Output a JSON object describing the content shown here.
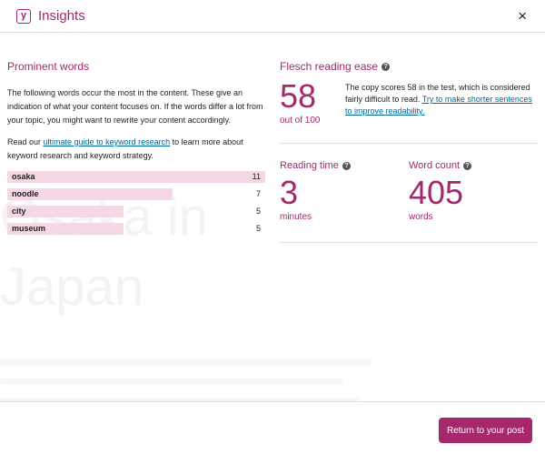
{
  "header": {
    "logo_letter": "y",
    "title": "Insights",
    "close_glyph": "×"
  },
  "prominent": {
    "heading": "Prominent words",
    "description": "The following words occur the most in the content. These give an indication of what your content focuses on. If the words differ a lot from your topic, you might want to rewrite your content accordingly.",
    "read_prefix": "Read our ",
    "read_link": "ultimate guide to keyword research",
    "read_suffix": " to learn more about keyword research and keyword strategy.",
    "words": [
      {
        "word": "osaka",
        "count": 11,
        "fraction": 1.0
      },
      {
        "word": "noodle",
        "count": 7,
        "fraction": 0.64
      },
      {
        "word": "city",
        "count": 5,
        "fraction": 0.45
      },
      {
        "word": "museum",
        "count": 5,
        "fraction": 0.45
      }
    ]
  },
  "flesch": {
    "title": "Flesch reading ease",
    "score": "58",
    "out_of": "out of 100",
    "description": "The copy scores 58 in the test, which is considered fairly difficult to read. ",
    "link": "Try to make shorter sentences to improve readability."
  },
  "reading_time": {
    "title": "Reading time",
    "value": "3",
    "unit": "minutes"
  },
  "word_count": {
    "title": "Word count",
    "value": "405",
    "unit": "words"
  },
  "help_glyph": "?",
  "background_text": {
    "line1": "Osaka in",
    "line2": "Japan"
  },
  "footer": {
    "return_label": "Return to your post"
  },
  "colors": {
    "accent": "#a4286a",
    "bar": "#f5d7e6",
    "link": "#006799"
  }
}
